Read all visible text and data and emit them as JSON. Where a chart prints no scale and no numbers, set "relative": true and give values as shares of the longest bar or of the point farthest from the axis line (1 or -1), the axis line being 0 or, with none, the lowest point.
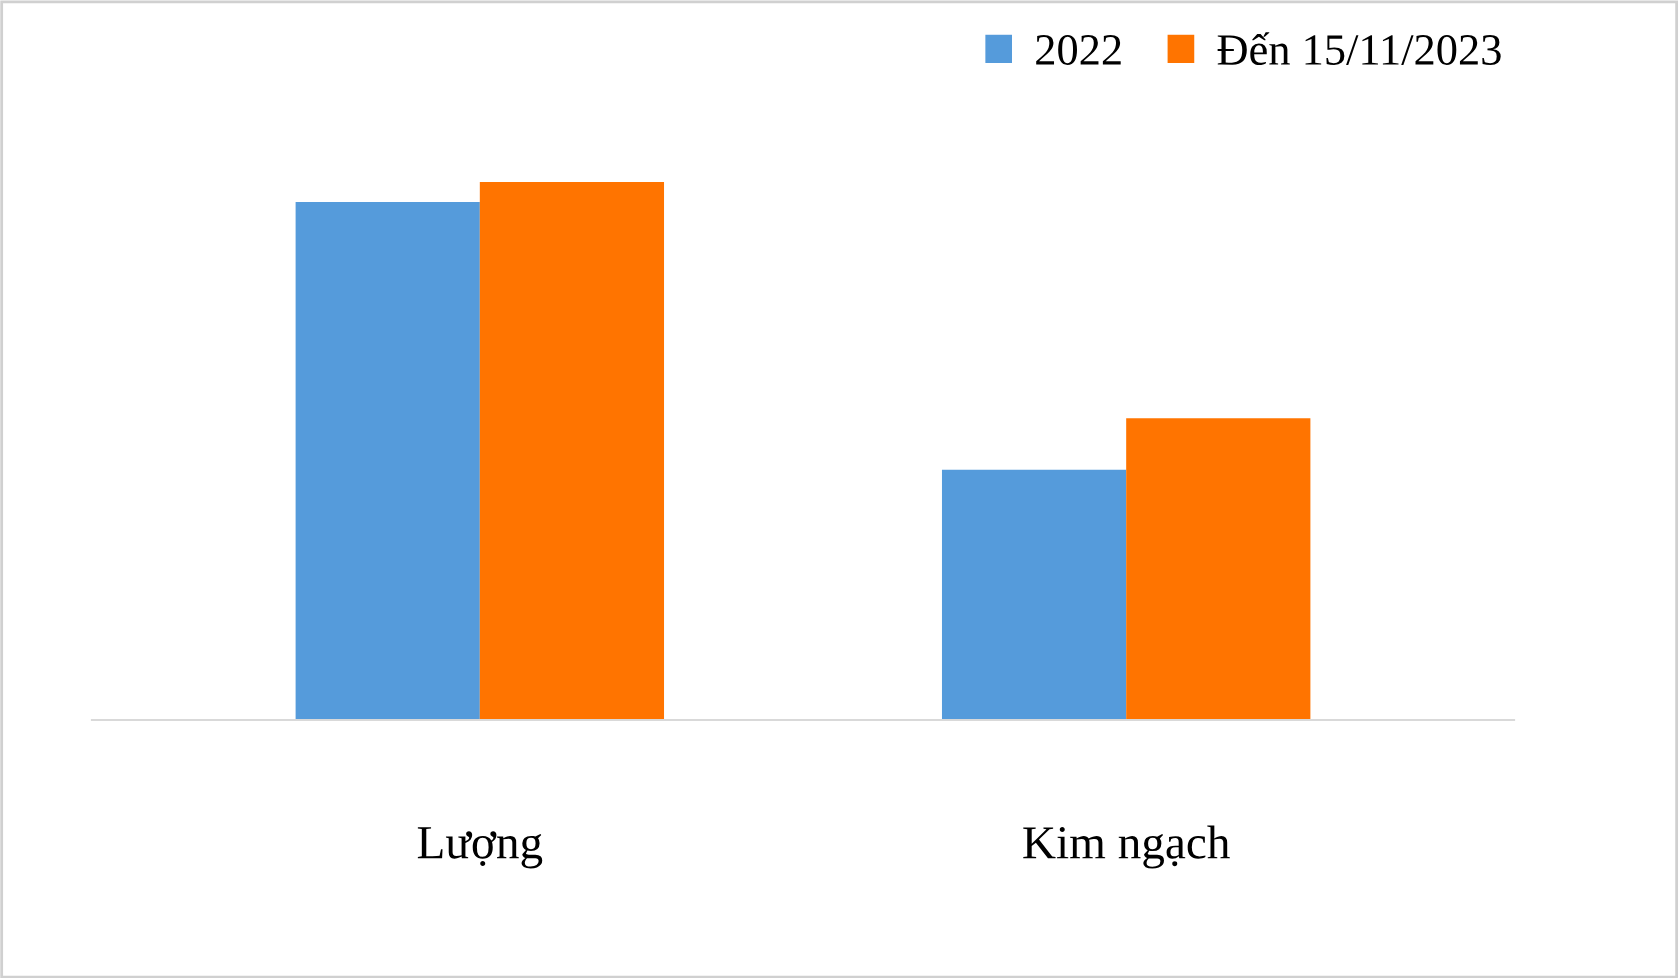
{
  "chart_data": {
    "type": "bar",
    "relative": true,
    "categories": [
      "Lượng",
      "Kim ngạch"
    ],
    "series": [
      {
        "name": "2022",
        "color": "#559bdb",
        "values": [
          0.963,
          0.465
        ]
      },
      {
        "name": "Đến 15/11/2023",
        "color": "#ff7400",
        "values": [
          1,
          0.561
        ]
      }
    ],
    "legend": "top right",
    "grid": false
  }
}
